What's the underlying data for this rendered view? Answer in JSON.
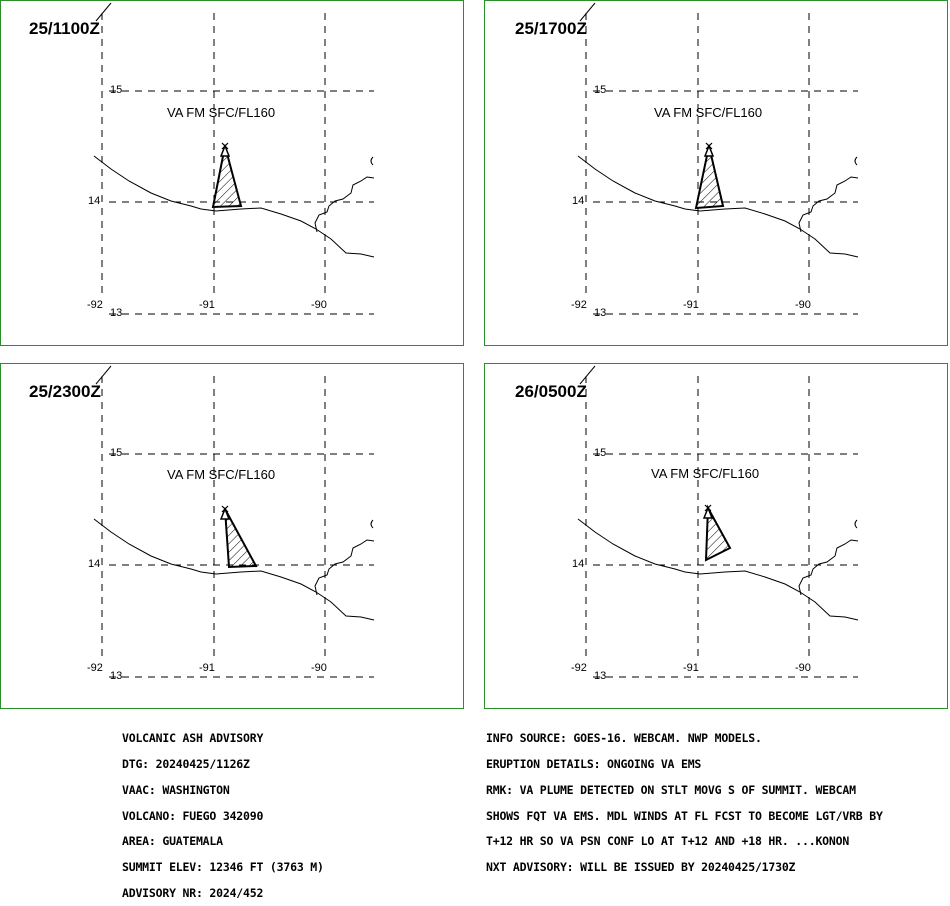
{
  "panels": [
    {
      "time": "25/1100Z",
      "label": "VA FM SFC/FL160"
    },
    {
      "time": "25/1700Z",
      "label": "VA FM SFC/FL160"
    },
    {
      "time": "25/2300Z",
      "label": "VA FM SFC/FL160"
    },
    {
      "time": "26/0500Z",
      "label": "VA FM SFC/FL160"
    }
  ],
  "grid_labels": {
    "lat15": "15",
    "lat14": "14",
    "lat13": "13",
    "lon92": "-92",
    "lon91": "-91",
    "lon90": "-90"
  },
  "colors": {
    "panel_border": "#2a8f2a",
    "lines": "#000000"
  },
  "advisory": {
    "lines": [
      "VOLCANIC ASH ADVISORY",
      "DTG: 20240425/1126Z",
      "VAAC: WASHINGTON",
      "VOLCANO: FUEGO 342090",
      "AREA: GUATEMALA",
      "SUMMIT ELEV: 12346 FT (3763 M)",
      "ADVISORY NR: 2024/452"
    ]
  },
  "info": {
    "lines": [
      "INFO SOURCE: GOES-16. WEBCAM. NWP MODELS.",
      "ERUPTION DETAILS: ONGOING VA EMS",
      "RMK: VA PLUME DETECTED ON STLT MOVG S OF SUMMIT. WEBCAM",
      "SHOWS FQT VA EMS. MDL WINDS AT FL FCST TO BECOME LGT/VRB BY",
      "T+12 HR SO VA PSN CONF LO AT T+12 AND +18 HR. ...KONON",
      "NXT ADVISORY: WILL BE ISSUED BY 20240425/1730Z"
    ]
  }
}
